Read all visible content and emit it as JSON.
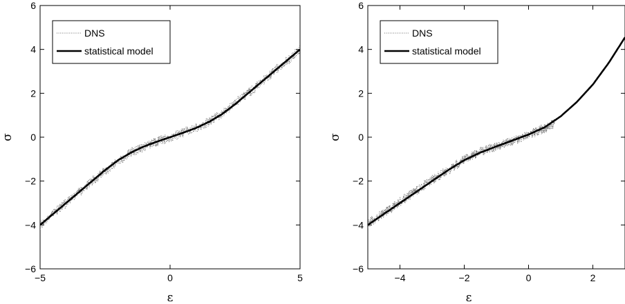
{
  "chart_data": [
    {
      "type": "line",
      "xlabel": "ε",
      "ylabel": "σ",
      "xlim": [
        -5,
        5
      ],
      "ylim": [
        -6,
        6
      ],
      "xticks": [
        -5,
        0,
        5
      ],
      "yticks": [
        -6,
        -4,
        -2,
        0,
        2,
        4,
        6
      ],
      "grid": false,
      "legend": "top-left",
      "series": [
        {
          "name": "DNS",
          "style": "dotted",
          "color": "#6e6e6e",
          "x": [
            -5,
            -4.5,
            -4,
            -3.5,
            -3,
            -2.5,
            -2,
            -1.5,
            -1,
            -0.5,
            0,
            0.5,
            1,
            1.5,
            2,
            2.5,
            3,
            3.5,
            4,
            4.5,
            5
          ],
          "values": [
            -4.0,
            -3.5,
            -3.0,
            -2.5,
            -2.0,
            -1.55,
            -1.1,
            -0.7,
            -0.42,
            -0.2,
            0.0,
            0.2,
            0.42,
            0.7,
            1.1,
            1.55,
            2.0,
            2.5,
            3.0,
            3.5,
            4.0
          ]
        },
        {
          "name": "statistical model",
          "style": "solid",
          "color": "#000000",
          "x": [
            -5,
            -4.5,
            -4,
            -3.5,
            -3,
            -2.5,
            -2,
            -1.5,
            -1,
            -0.5,
            0,
            0.5,
            1,
            1.5,
            2,
            2.5,
            3,
            3.5,
            4,
            4.5,
            5
          ],
          "values": [
            -4.0,
            -3.5,
            -3.0,
            -2.5,
            -2.0,
            -1.5,
            -1.05,
            -0.7,
            -0.42,
            -0.2,
            0.0,
            0.2,
            0.42,
            0.7,
            1.05,
            1.5,
            2.0,
            2.5,
            3.0,
            3.5,
            4.0
          ]
        }
      ]
    },
    {
      "type": "line",
      "xlabel": "ε",
      "ylabel": "σ",
      "xlim": [
        -5,
        3
      ],
      "ylim": [
        -6,
        6
      ],
      "xticks": [
        -4,
        -2,
        0,
        2
      ],
      "yticks": [
        -6,
        -4,
        -2,
        0,
        2,
        4,
        6
      ],
      "grid": false,
      "legend": "top-left",
      "series": [
        {
          "name": "DNS",
          "style": "dotted",
          "color": "#6e6e6e",
          "x": [
            -5,
            -4.5,
            -4,
            -3.5,
            -3,
            -2.5,
            -2,
            -1.5,
            -1,
            -0.5,
            0,
            0.5,
            0.8
          ],
          "values": [
            -3.95,
            -3.45,
            -2.95,
            -2.45,
            -1.95,
            -1.5,
            -1.0,
            -0.68,
            -0.4,
            -0.18,
            0.1,
            0.4,
            0.65
          ]
        },
        {
          "name": "statistical model",
          "style": "solid",
          "color": "#000000",
          "x": [
            -5,
            -4.5,
            -4,
            -3.5,
            -3,
            -2.5,
            -2,
            -1.5,
            -1,
            -0.5,
            0,
            0.5,
            1,
            1.5,
            2,
            2.5,
            3
          ],
          "values": [
            -4.0,
            -3.5,
            -3.0,
            -2.5,
            -2.0,
            -1.5,
            -1.05,
            -0.7,
            -0.42,
            -0.15,
            0.12,
            0.45,
            0.95,
            1.6,
            2.4,
            3.4,
            4.55
          ]
        }
      ]
    }
  ]
}
